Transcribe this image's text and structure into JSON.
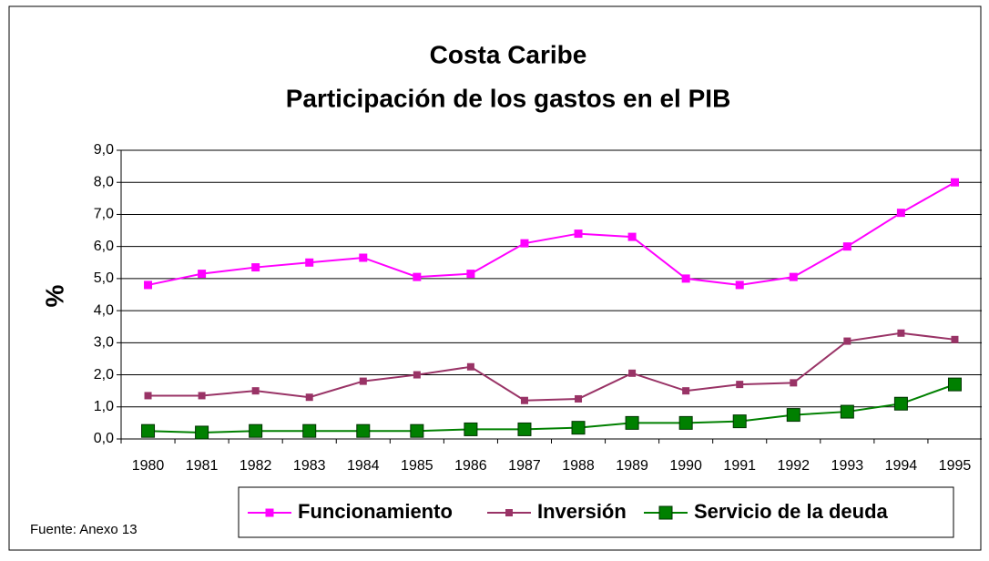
{
  "chart_data": {
    "type": "line",
    "title": "Costa Caribe",
    "subtitle": "Participación de los gastos en el PIB",
    "y_label": "%",
    "source": "Fuente: Anexo 13",
    "categories": [
      "1980",
      "1981",
      "1982",
      "1983",
      "1984",
      "1985",
      "1986",
      "1987",
      "1988",
      "1989",
      "1990",
      "1991",
      "1992",
      "1993",
      "1994",
      "1995"
    ],
    "series": [
      {
        "name": "Funcionamiento",
        "color": "#ff00ff",
        "values": [
          4.8,
          5.15,
          5.35,
          5.5,
          5.65,
          5.05,
          5.15,
          6.1,
          6.4,
          6.3,
          5.0,
          4.8,
          5.05,
          6.0,
          7.05,
          8.0
        ]
      },
      {
        "name": "Inversión",
        "color": "#993366",
        "values": [
          1.35,
          1.35,
          1.5,
          1.3,
          1.8,
          2.0,
          2.25,
          1.2,
          1.25,
          2.05,
          1.5,
          1.7,
          1.75,
          3.05,
          3.3,
          3.1
        ]
      },
      {
        "name": "Servicio de la deuda",
        "color": "#008000",
        "values": [
          0.25,
          0.2,
          0.25,
          0.25,
          0.25,
          0.25,
          0.3,
          0.3,
          0.35,
          0.5,
          0.5,
          0.55,
          0.75,
          0.85,
          1.1,
          1.7
        ]
      }
    ],
    "ylim": [
      0,
      9
    ],
    "yticks": [
      {
        "value": 0,
        "label": "0,0"
      },
      {
        "value": 1,
        "label": "1,0"
      },
      {
        "value": 2,
        "label": "2,0"
      },
      {
        "value": 3,
        "label": "3,0"
      },
      {
        "value": 4,
        "label": "4,0"
      },
      {
        "value": 5,
        "label": "5,0"
      },
      {
        "value": 6,
        "label": "6,0"
      },
      {
        "value": 7,
        "label": "7,0"
      },
      {
        "value": 8,
        "label": "8,0"
      },
      {
        "value": 9,
        "label": "9,0"
      }
    ],
    "grid": true,
    "legend": "bottom"
  }
}
